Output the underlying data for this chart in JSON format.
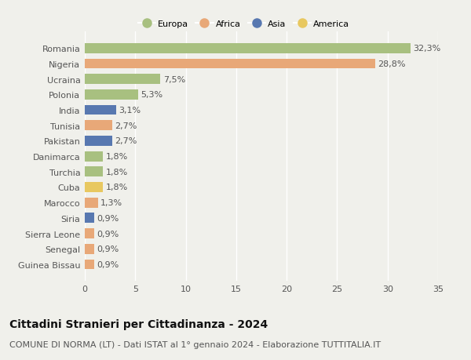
{
  "countries": [
    "Romania",
    "Nigeria",
    "Ucraina",
    "Polonia",
    "India",
    "Tunisia",
    "Pakistan",
    "Danimarca",
    "Turchia",
    "Cuba",
    "Marocco",
    "Siria",
    "Sierra Leone",
    "Senegal",
    "Guinea Bissau"
  ],
  "values": [
    32.3,
    28.8,
    7.5,
    5.3,
    3.1,
    2.7,
    2.7,
    1.8,
    1.8,
    1.8,
    1.3,
    0.9,
    0.9,
    0.9,
    0.9
  ],
  "labels": [
    "32,3%",
    "28,8%",
    "7,5%",
    "5,3%",
    "3,1%",
    "2,7%",
    "2,7%",
    "1,8%",
    "1,8%",
    "1,8%",
    "1,3%",
    "0,9%",
    "0,9%",
    "0,9%",
    "0,9%"
  ],
  "continents": [
    "Europa",
    "Africa",
    "Europa",
    "Europa",
    "Asia",
    "Africa",
    "Asia",
    "Europa",
    "Europa",
    "America",
    "Africa",
    "Asia",
    "Africa",
    "Africa",
    "Africa"
  ],
  "colors": {
    "Europa": "#a8c080",
    "Africa": "#e8a878",
    "Asia": "#5878b0",
    "America": "#e8c860"
  },
  "xlim": [
    0,
    35
  ],
  "xticks": [
    0,
    5,
    10,
    15,
    20,
    25,
    30,
    35
  ],
  "background_color": "#f0f0eb",
  "grid_color": "#ffffff",
  "bar_height": 0.65,
  "title": "Cittadini Stranieri per Cittadinanza - 2024",
  "subtitle": "COMUNE DI NORMA (LT) - Dati ISTAT al 1° gennaio 2024 - Elaborazione TUTTITALIA.IT",
  "title_fontsize": 10,
  "subtitle_fontsize": 8,
  "label_fontsize": 8,
  "tick_fontsize": 8,
  "legend_entries": [
    "Europa",
    "Africa",
    "Asia",
    "America"
  ]
}
